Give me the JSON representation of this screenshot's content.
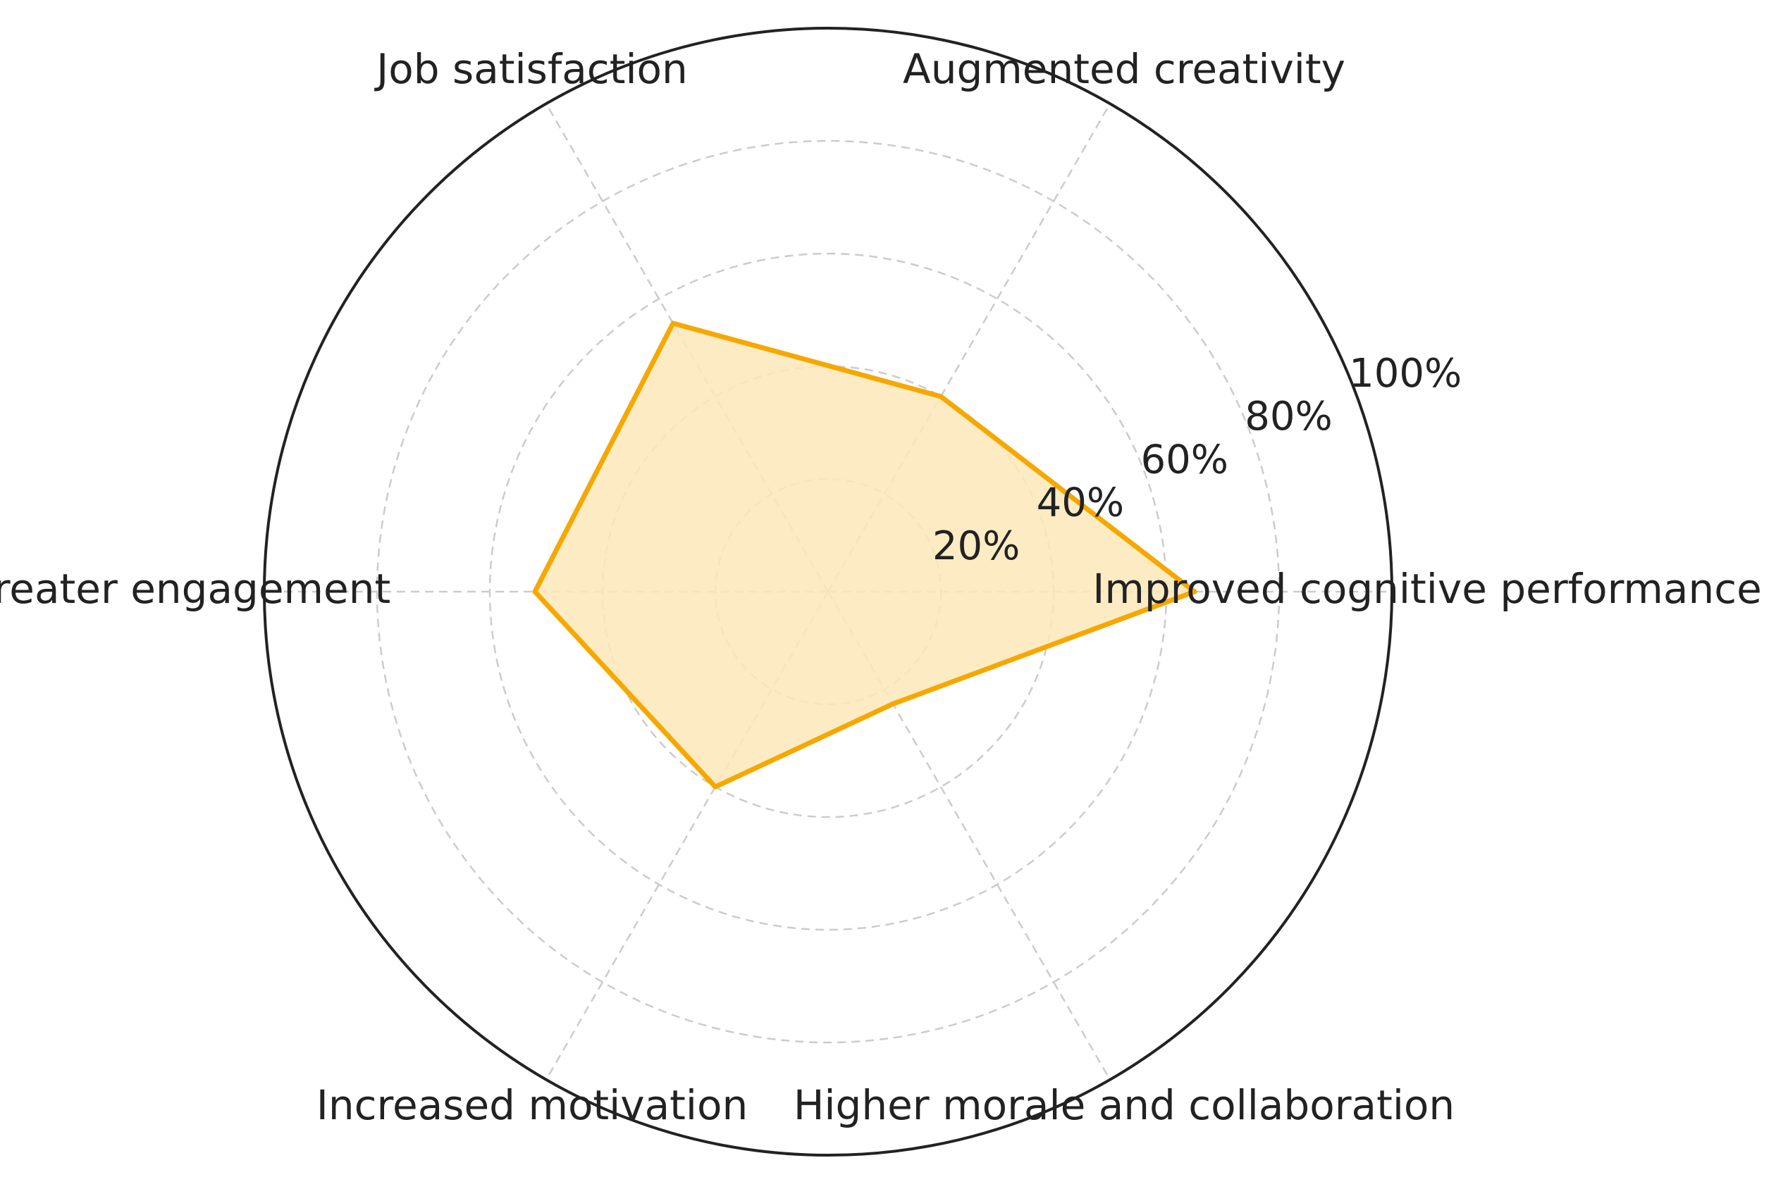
{
  "chart_data": {
    "type": "radar",
    "categories": [
      "Improved cognitive performance",
      "Augmented creativity",
      "Job satisfaction",
      "Greater engagement",
      "Increased motivation",
      "Higher morale and collaboration"
    ],
    "values": [
      65,
      40,
      55,
      52,
      40,
      23
    ],
    "radial_ticks": [
      20,
      40,
      60,
      80,
      100
    ],
    "radial_tick_labels": [
      "20%",
      "40%",
      "60%",
      "80%",
      "100%"
    ],
    "rlim": [
      0,
      100
    ],
    "grid": true,
    "title": "",
    "colors": {
      "series_line": "#f5a800",
      "series_fill": "#fde8b8",
      "outer_ring": "#222222",
      "grid": "#cccccc"
    }
  }
}
